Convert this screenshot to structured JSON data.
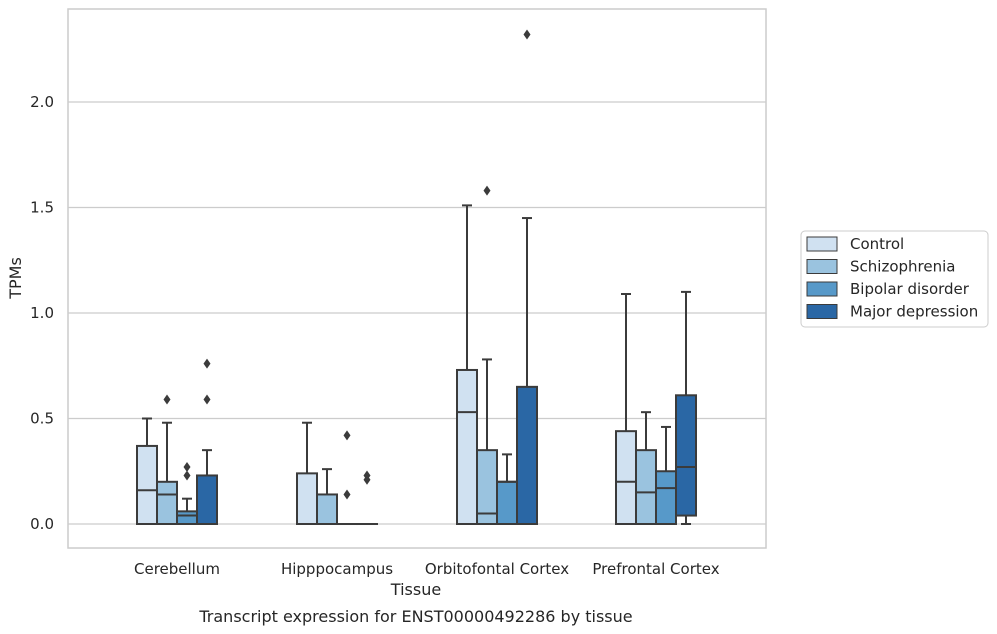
{
  "chart_data": {
    "type": "box",
    "title": "",
    "caption": "Transcript expression for ENST00000492286 by tissue",
    "xlabel": "Tissue",
    "ylabel": "TPMs",
    "ylim": [
      -0.11,
      2.45
    ],
    "yticks": [
      0.0,
      0.5,
      1.0,
      1.5,
      2.0
    ],
    "grid": true,
    "legend_position": "right",
    "categories": [
      "Cerebellum",
      "Hipppocampus",
      "Orbitofontal Cortex",
      "Prefrontal Cortex"
    ],
    "series": [
      {
        "name": "Control",
        "color": "#d0e1f1",
        "boxes": [
          {
            "low": 0.0,
            "q1": 0.0,
            "median": 0.16,
            "q3": 0.37,
            "high": 0.5,
            "outliers": []
          },
          {
            "low": 0.0,
            "q1": 0.0,
            "median": 0.0,
            "q3": 0.24,
            "high": 0.48,
            "outliers": []
          },
          {
            "low": 0.0,
            "q1": 0.0,
            "median": 0.53,
            "q3": 0.73,
            "high": 1.51,
            "outliers": []
          },
          {
            "low": 0.0,
            "q1": 0.0,
            "median": 0.2,
            "q3": 0.44,
            "high": 1.09,
            "outliers": []
          }
        ]
      },
      {
        "name": "Schizophrenia",
        "color": "#9ac3df",
        "boxes": [
          {
            "low": 0.0,
            "q1": 0.0,
            "median": 0.14,
            "q3": 0.2,
            "high": 0.48,
            "outliers": [
              0.59
            ]
          },
          {
            "low": 0.0,
            "q1": 0.0,
            "median": 0.0,
            "q3": 0.14,
            "high": 0.26,
            "outliers": []
          },
          {
            "low": 0.0,
            "q1": 0.0,
            "median": 0.05,
            "q3": 0.35,
            "high": 0.78,
            "outliers": [
              1.58
            ]
          },
          {
            "low": 0.0,
            "q1": 0.0,
            "median": 0.15,
            "q3": 0.35,
            "high": 0.53,
            "outliers": []
          }
        ]
      },
      {
        "name": "Bipolar disorder",
        "color": "#5799c9",
        "boxes": [
          {
            "low": 0.0,
            "q1": 0.0,
            "median": 0.04,
            "q3": 0.06,
            "high": 0.12,
            "outliers": [
              0.23,
              0.27
            ]
          },
          {
            "low": 0.0,
            "q1": 0.0,
            "median": 0.0,
            "q3": 0.0,
            "high": 0.0,
            "outliers": [
              0.14,
              0.42
            ]
          },
          {
            "low": 0.0,
            "q1": 0.0,
            "median": 0.2,
            "q3": 0.2,
            "high": 0.33,
            "outliers": []
          },
          {
            "low": 0.0,
            "q1": 0.0,
            "median": 0.17,
            "q3": 0.25,
            "high": 0.46,
            "outliers": []
          }
        ]
      },
      {
        "name": "Major depression",
        "color": "#2a67a5",
        "boxes": [
          {
            "low": 0.0,
            "q1": 0.0,
            "median": 0.0,
            "q3": 0.23,
            "high": 0.35,
            "outliers": [
              0.59,
              0.76
            ]
          },
          {
            "low": 0.0,
            "q1": 0.0,
            "median": 0.0,
            "q3": 0.0,
            "high": 0.0,
            "outliers": [
              0.21,
              0.23
            ]
          },
          {
            "low": 0.0,
            "q1": 0.0,
            "median": 0.0,
            "q3": 0.65,
            "high": 1.45,
            "outliers": [
              2.32
            ]
          },
          {
            "low": 0.0,
            "q1": 0.04,
            "median": 0.27,
            "q3": 0.61,
            "high": 1.1,
            "outliers": []
          }
        ]
      }
    ]
  }
}
